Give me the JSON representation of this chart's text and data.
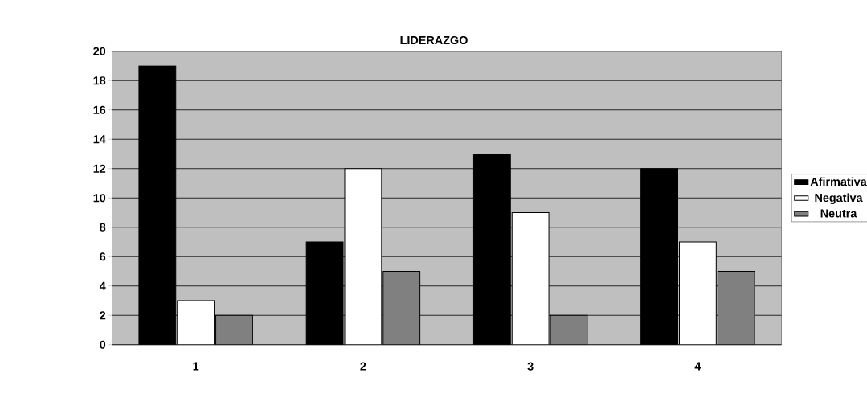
{
  "chart_data": {
    "type": "bar",
    "title": "LIDERAZGO",
    "categories": [
      "1",
      "2",
      "3",
      "4"
    ],
    "series": [
      {
        "name": "Afirmativa",
        "color": "#000000",
        "values": [
          19,
          7,
          13,
          12
        ]
      },
      {
        "name": "Negativa",
        "color": "#ffffff",
        "values": [
          3,
          12,
          9,
          7
        ]
      },
      {
        "name": "Neutra",
        "color": "#808080",
        "values": [
          2,
          5,
          2,
          5
        ]
      }
    ],
    "ylim": [
      0,
      20
    ],
    "yticks": [
      0,
      2,
      4,
      6,
      8,
      10,
      12,
      14,
      16,
      18,
      20
    ],
    "grid": "y",
    "legend": "right"
  }
}
